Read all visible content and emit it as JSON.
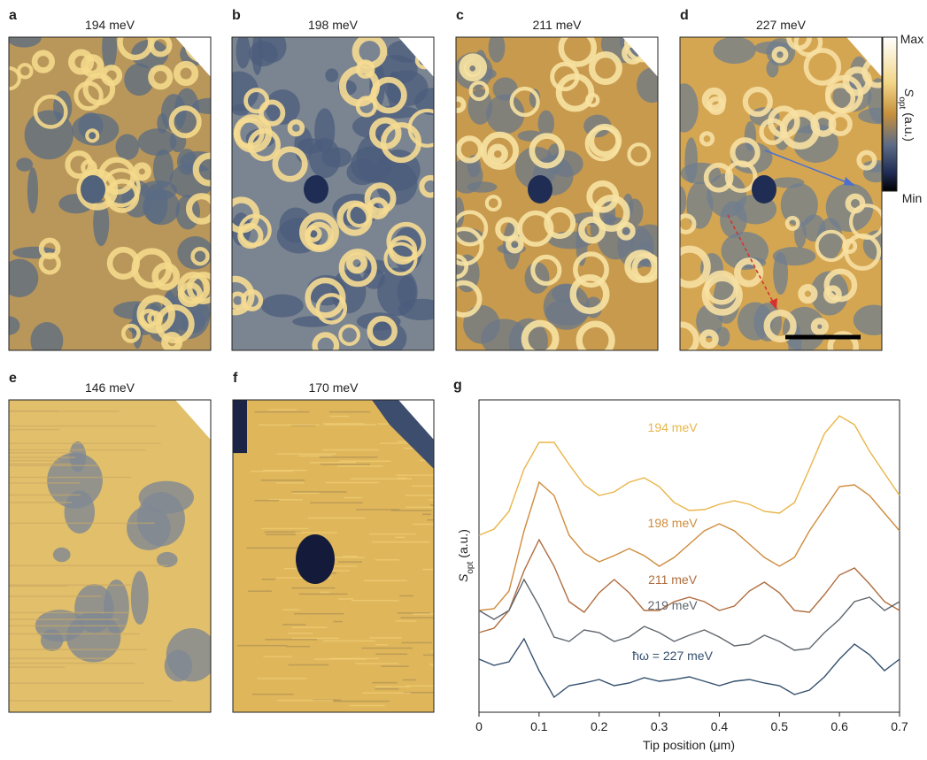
{
  "panels": [
    {
      "letter": "a",
      "title": "194 meV"
    },
    {
      "letter": "b",
      "title": "198 meV"
    },
    {
      "letter": "c",
      "title": "211 meV"
    },
    {
      "letter": "d",
      "title": "227 meV"
    },
    {
      "letter": "e",
      "title": "146 meV"
    },
    {
      "letter": "f",
      "title": "170 meV"
    }
  ],
  "colorbar": {
    "max": "Max",
    "min": "Min",
    "label": {
      "symbol": "S",
      "subscript": "opt",
      "unit": "(a.u.)"
    }
  },
  "chart_data": {
    "type": "line",
    "letter": "g",
    "x_label": "Tip position (μm)",
    "y_label": {
      "symbol": "S",
      "subscript": "opt",
      "unit": "(a.u.)"
    },
    "x": [
      0,
      0.025,
      0.05,
      0.075,
      0.1,
      0.125,
      0.15,
      0.175,
      0.2,
      0.225,
      0.25,
      0.275,
      0.3,
      0.325,
      0.35,
      0.375,
      0.4,
      0.425,
      0.45,
      0.475,
      0.5,
      0.525,
      0.55,
      0.575,
      0.6,
      0.625,
      0.65,
      0.675,
      0.7
    ],
    "xlim": [
      0,
      0.7
    ],
    "xticks": [
      0,
      0.1,
      0.2,
      0.3,
      0.4,
      0.5,
      0.6,
      0.7
    ],
    "ylim": [
      0,
      353
    ],
    "series": [
      {
        "name": "194 meV",
        "color": "#e9b54a",
        "values": [
          200,
          207,
          227,
          275,
          305,
          305,
          280,
          257,
          245,
          249,
          260,
          265,
          255,
          237,
          228,
          229,
          235,
          239,
          235,
          227,
          225,
          237,
          275,
          315,
          335,
          325,
          295,
          270,
          245
        ]
      },
      {
        "name": "198 meV",
        "color": "#cf8c3e",
        "values": [
          115,
          117,
          137,
          205,
          260,
          245,
          200,
          180,
          170,
          177,
          185,
          177,
          165,
          175,
          190,
          205,
          213,
          205,
          190,
          175,
          165,
          175,
          205,
          230,
          255,
          257,
          245,
          225,
          205
        ]
      },
      {
        "name": "211 meV",
        "color": "#b06d3e",
        "values": [
          90,
          95,
          115,
          160,
          195,
          165,
          125,
          113,
          135,
          150,
          135,
          115,
          115,
          125,
          130,
          125,
          115,
          120,
          137,
          147,
          135,
          115,
          113,
          133,
          155,
          163,
          145,
          125,
          115
        ]
      },
      {
        "name": "219 meV",
        "color": "#5f676f",
        "values": [
          115,
          105,
          115,
          150,
          120,
          85,
          80,
          93,
          90,
          80,
          85,
          97,
          90,
          80,
          87,
          93,
          85,
          75,
          77,
          87,
          80,
          70,
          72,
          90,
          105,
          125,
          130,
          115,
          125
        ]
      },
      {
        "name": "ħω = 227 meV",
        "color": "#34506e",
        "values": [
          60,
          53,
          57,
          83,
          47,
          17,
          30,
          33,
          37,
          30,
          33,
          39,
          35,
          37,
          40,
          35,
          30,
          35,
          37,
          33,
          30,
          20,
          25,
          40,
          60,
          77,
          65,
          47,
          60
        ]
      }
    ]
  }
}
